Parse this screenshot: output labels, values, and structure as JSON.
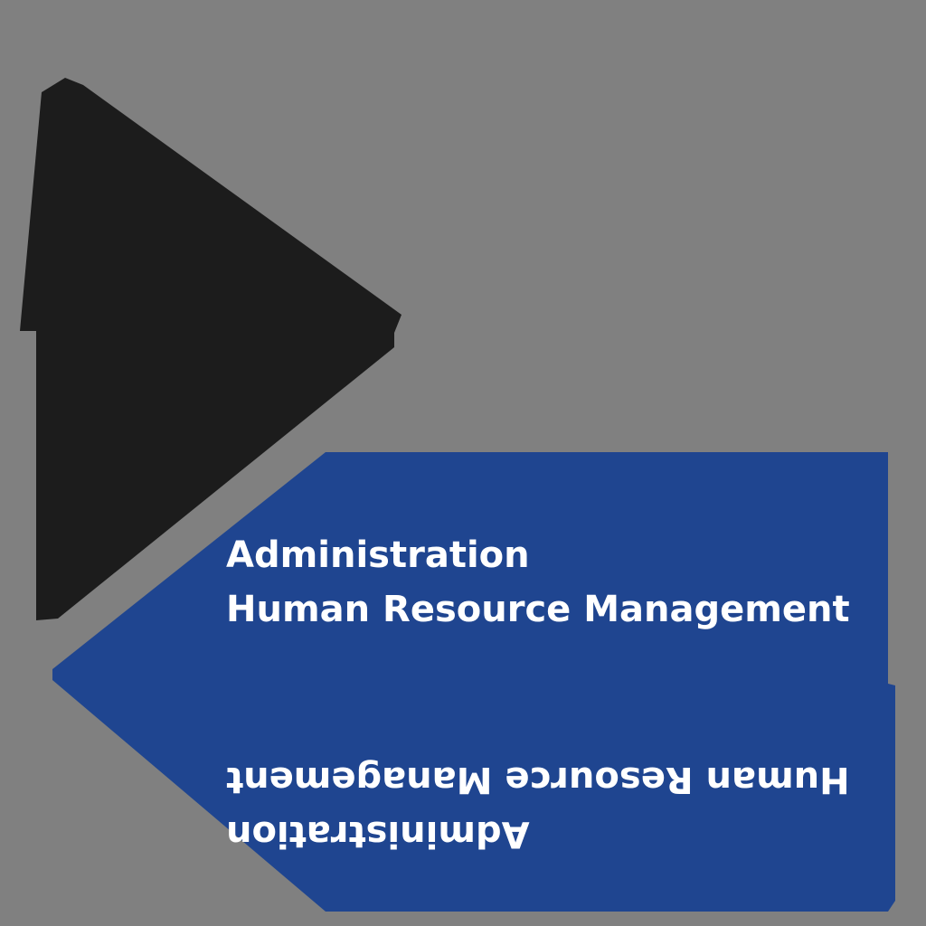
{
  "colors": {
    "background": "#808080",
    "dark_shape": "#1c1c1c",
    "blue_shape": "#1f4590",
    "text": "#ffffff"
  },
  "upper_label": {
    "line1": "Administration",
    "line2": "Human Resource Management"
  },
  "lower_label": {
    "line1": "Administration",
    "line2": "Human Resource Management"
  }
}
